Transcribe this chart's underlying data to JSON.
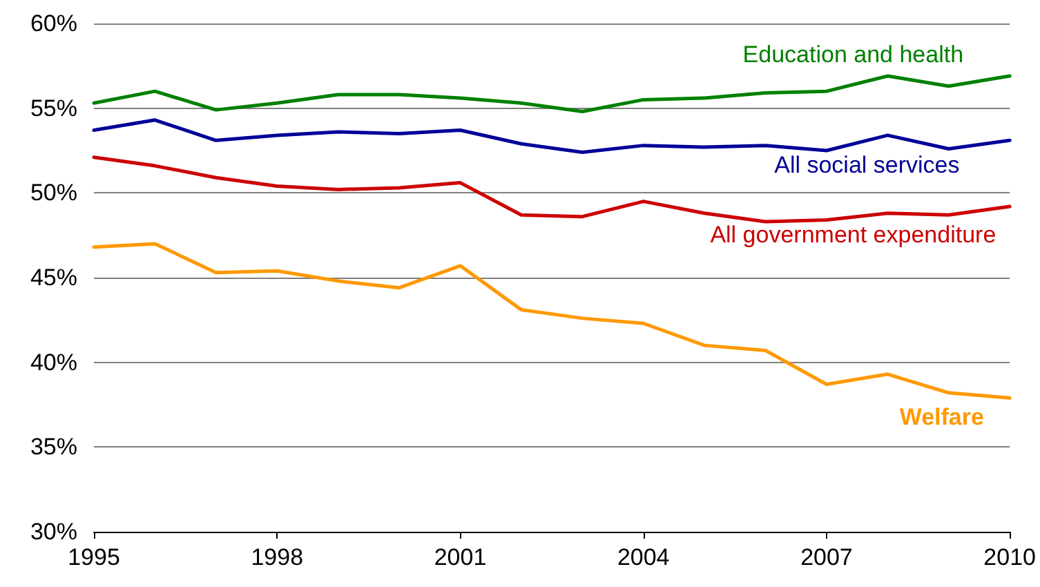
{
  "chart_data": {
    "type": "line",
    "x": [
      1995,
      1996,
      1997,
      1998,
      1999,
      2000,
      2001,
      2002,
      2003,
      2004,
      2005,
      2006,
      2007,
      2008,
      2009,
      2010
    ],
    "series": [
      {
        "name": "Education and health",
        "color": "#008000",
        "values": [
          55.3,
          56.0,
          54.9,
          55.3,
          55.8,
          55.8,
          55.6,
          55.3,
          54.8,
          55.5,
          55.6,
          55.9,
          56.0,
          56.9,
          56.3,
          56.9
        ]
      },
      {
        "name": "All social services",
        "color": "#000099",
        "values": [
          53.7,
          54.3,
          53.1,
          53.4,
          53.6,
          53.5,
          53.7,
          52.9,
          52.4,
          52.8,
          52.7,
          52.8,
          52.5,
          53.4,
          52.6,
          53.1
        ]
      },
      {
        "name": "All government expenditure",
        "color": "#cc0000",
        "values": [
          52.1,
          51.6,
          50.9,
          50.4,
          50.2,
          50.3,
          50.6,
          48.7,
          48.6,
          49.5,
          48.8,
          48.3,
          48.4,
          48.8,
          48.7,
          49.2
        ]
      },
      {
        "name": "Welfare",
        "color": "#ff9900",
        "values": [
          46.8,
          47.0,
          45.3,
          45.4,
          44.8,
          44.4,
          45.7,
          43.1,
          42.6,
          42.3,
          41.0,
          40.7,
          38.7,
          39.3,
          38.2,
          37.9
        ]
      }
    ],
    "xlim": [
      1995,
      2010
    ],
    "xticks": [
      1995,
      1998,
      2001,
      2004,
      2007,
      2010
    ],
    "ylim": [
      30,
      60
    ],
    "yticks": [
      {
        "value": 30,
        "label": "30%"
      },
      {
        "value": 35,
        "label": "35%"
      },
      {
        "value": 40,
        "label": "40%"
      },
      {
        "value": 45,
        "label": "45%"
      },
      {
        "value": 50,
        "label": "50%"
      },
      {
        "value": 55,
        "label": "55%"
      },
      {
        "value": 60,
        "label": "60%"
      }
    ],
    "grid": "y",
    "legend": false,
    "marker": "none",
    "line_style": "solid"
  }
}
